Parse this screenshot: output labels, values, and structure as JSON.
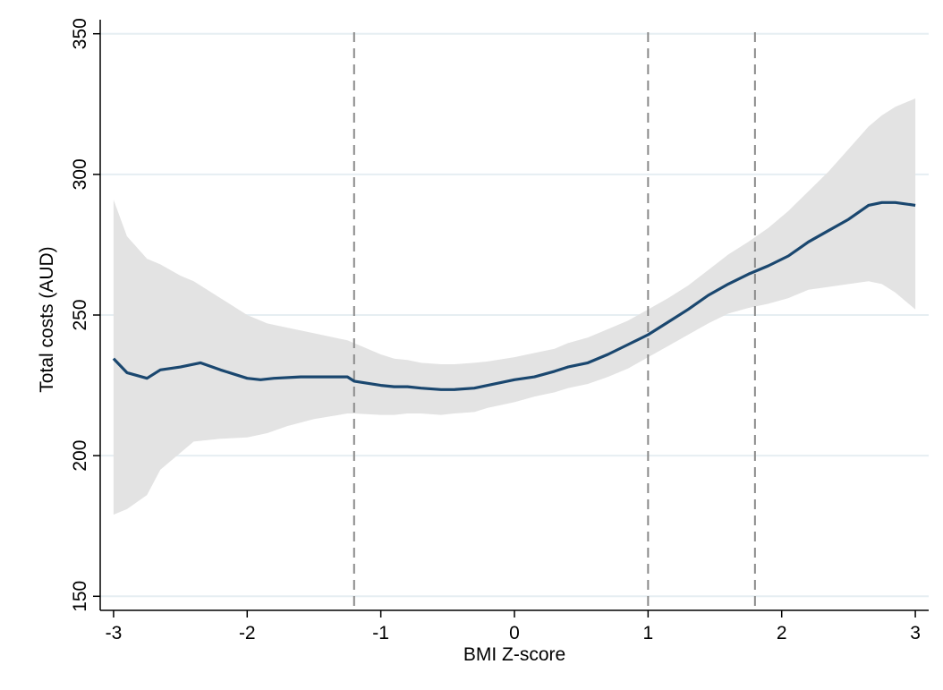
{
  "chart_data": {
    "type": "line",
    "xlabel": "BMI Z-score",
    "ylabel": "Total costs (AUD)",
    "xlim": [
      -3.1,
      3.1
    ],
    "ylim": [
      145,
      355
    ],
    "xticks": [
      -3,
      -2,
      -1,
      0,
      1,
      2,
      3
    ],
    "yticks": [
      150,
      200,
      250,
      300,
      350
    ],
    "grid": "horizontal",
    "legend": "none",
    "reference_lines_x": [
      -1.2,
      1,
      1.8
    ],
    "colors": {
      "line": "#1a476f",
      "band": "#e3e3e3",
      "grid": "#e6eef2",
      "reference": "#8a8a8a"
    },
    "series": [
      {
        "type": "line",
        "x": [
          -3.0,
          -2.9,
          -2.75,
          -2.65,
          -2.5,
          -2.35,
          -2.2,
          -2.0,
          -1.9,
          -1.8,
          -1.6,
          -1.5,
          -1.4,
          -1.25,
          -1.2,
          -1.0,
          -0.9,
          -0.8,
          -0.7,
          -0.55,
          -0.45,
          -0.3,
          -0.2,
          0.0,
          0.15,
          0.3,
          0.4,
          0.55,
          0.7,
          0.85,
          1.0,
          1.15,
          1.3,
          1.45,
          1.6,
          1.75,
          1.9,
          2.05,
          2.2,
          2.35,
          2.5,
          2.65,
          2.75,
          2.85,
          3.0
        ],
        "y": [
          234.5,
          229.5,
          227.5,
          230.5,
          231.5,
          233,
          230.5,
          227.5,
          227,
          227.5,
          228,
          228,
          228,
          228,
          226.5,
          225,
          224.5,
          224.5,
          224,
          223.5,
          223.5,
          224,
          225,
          227,
          228,
          230,
          231.5,
          233,
          236,
          239.5,
          243,
          247.5,
          252,
          257,
          261,
          264.5,
          267.5,
          271,
          276,
          280,
          284,
          289,
          290,
          290,
          289
        ]
      },
      {
        "type": "band",
        "x": [
          -3.0,
          -2.9,
          -2.75,
          -2.65,
          -2.5,
          -2.4,
          -2.2,
          -2.0,
          -1.85,
          -1.7,
          -1.5,
          -1.25,
          -1.2,
          -1.0,
          -0.9,
          -0.8,
          -0.7,
          -0.55,
          -0.45,
          -0.3,
          -0.2,
          0.0,
          0.15,
          0.3,
          0.4,
          0.55,
          0.7,
          0.85,
          1.0,
          1.15,
          1.3,
          1.45,
          1.6,
          1.75,
          1.9,
          2.05,
          2.2,
          2.35,
          2.5,
          2.65,
          2.75,
          2.85,
          3.0
        ],
        "lower": [
          179,
          181,
          186,
          195,
          201,
          205,
          206,
          206.5,
          208,
          210.5,
          213,
          215,
          215,
          214.5,
          214.5,
          215,
          215,
          214.5,
          215,
          215.5,
          217,
          219,
          221,
          222.5,
          224,
          225.5,
          228,
          231,
          235,
          239,
          243,
          247,
          250.5,
          252.5,
          254,
          256,
          259,
          260,
          261,
          262,
          261,
          258,
          252
        ],
        "upper": [
          291,
          278,
          270,
          268,
          264,
          262,
          256,
          250,
          247,
          245.5,
          243.5,
          241,
          240,
          236,
          234.5,
          234,
          233,
          232.5,
          232.5,
          233,
          233.5,
          235,
          236.5,
          238,
          240,
          242,
          245,
          248,
          252,
          256,
          260.5,
          266,
          271.5,
          276,
          281,
          287,
          294,
          301,
          309,
          317,
          321,
          324,
          327
        ]
      }
    ]
  }
}
